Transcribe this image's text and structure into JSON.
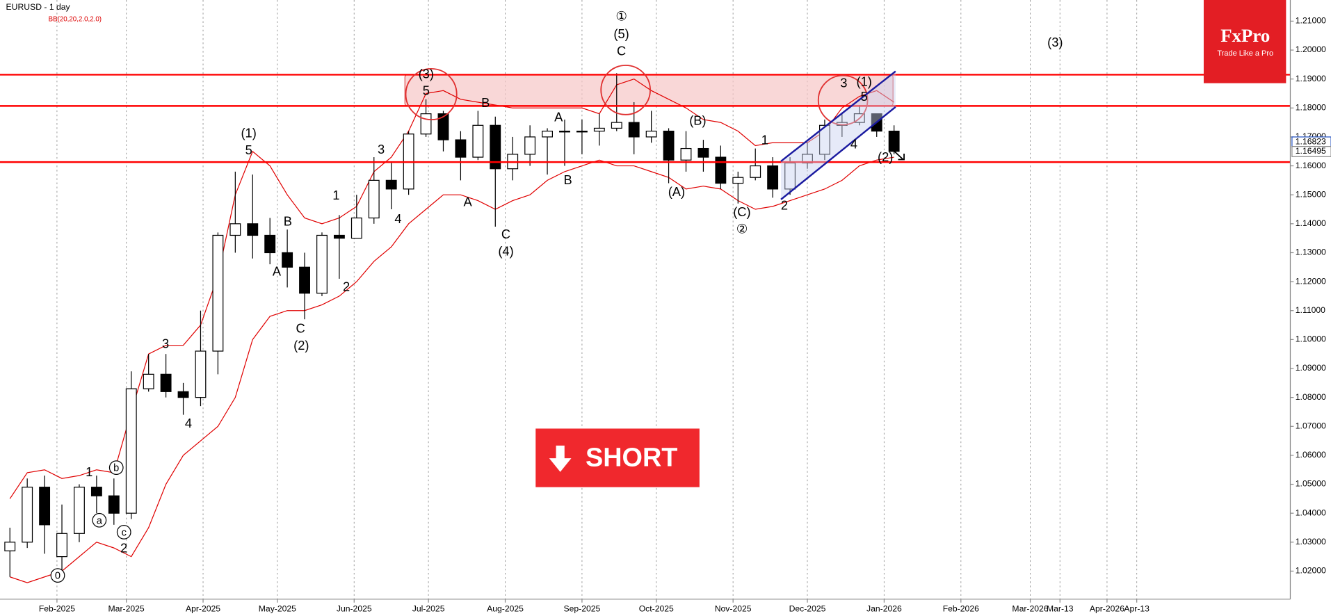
{
  "chart_data": {
    "type": "candlestick",
    "title": "EURUSD - 1 day",
    "subtitle": "BB(20,20,2.0,2.0)",
    "xlim": [
      "2025-01-09",
      "2026-06-14"
    ],
    "ylim": [
      1.0103,
      1.2173
    ],
    "yticks": [
      {
        "value": 1.02,
        "label": "1.02000"
      },
      {
        "value": 1.03,
        "label": "1.03000"
      },
      {
        "value": 1.04,
        "label": "1.04000"
      },
      {
        "value": 1.05,
        "label": "1.05000"
      },
      {
        "value": 1.06,
        "label": "1.06000"
      },
      {
        "value": 1.07,
        "label": "1.07000"
      },
      {
        "value": 1.08,
        "label": "1.08000"
      },
      {
        "value": 1.09,
        "label": "1.09000"
      },
      {
        "value": 1.1,
        "label": "1.10000"
      },
      {
        "value": 1.11,
        "label": "1.11000"
      },
      {
        "value": 1.12,
        "label": "1.12000"
      },
      {
        "value": 1.13,
        "label": "1.13000"
      },
      {
        "value": 1.14,
        "label": "1.14000"
      },
      {
        "value": 1.15,
        "label": "1.15000"
      },
      {
        "value": 1.16,
        "label": "1.16000"
      },
      {
        "value": 1.17,
        "label": "1.17000"
      },
      {
        "value": 1.18,
        "label": "1.18000"
      },
      {
        "value": 1.19,
        "label": "1.19000"
      },
      {
        "value": 1.2,
        "label": "1.20000"
      },
      {
        "value": 1.21,
        "label": "1.21000"
      }
    ],
    "xticks": [
      {
        "value": "2025-02-01",
        "label": "Feb-2025"
      },
      {
        "value": "2025-03-01",
        "label": "Mar-2025"
      },
      {
        "value": "2025-04-01",
        "label": "Apr-2025"
      },
      {
        "value": "2025-05-01",
        "label": "May-2025"
      },
      {
        "value": "2025-06-01",
        "label": "Jun-2025"
      },
      {
        "value": "2025-07-01",
        "label": "Jul-2025"
      },
      {
        "value": "2025-08-01",
        "label": "Aug-2025"
      },
      {
        "value": "2025-09-01",
        "label": "Sep-2025"
      },
      {
        "value": "2025-10-01",
        "label": "Oct-2025"
      },
      {
        "value": "2025-11-01",
        "label": "Nov-2025"
      },
      {
        "value": "2025-12-01",
        "label": "Dec-2025"
      },
      {
        "value": "2026-01-01",
        "label": "Jan-2026"
      },
      {
        "value": "2026-02-01",
        "label": "Feb-2026"
      },
      {
        "value": "2026-03-01",
        "label": "Mar-2026"
      },
      {
        "value": "2026-03-13",
        "label": "Mar-13"
      },
      {
        "value": "2026-04-01",
        "label": "Apr-2026"
      },
      {
        "value": "2026-04-13",
        "label": "Apr-13"
      }
    ],
    "x": [
      "2025-01-13",
      "2025-01-20",
      "2025-01-27",
      "2025-02-03",
      "2025-02-10",
      "2025-02-17",
      "2025-02-24",
      "2025-03-03",
      "2025-03-10",
      "2025-03-17",
      "2025-03-24",
      "2025-03-31",
      "2025-04-07",
      "2025-04-14",
      "2025-04-21",
      "2025-04-28",
      "2025-05-05",
      "2025-05-12",
      "2025-05-19",
      "2025-05-26",
      "2025-06-02",
      "2025-06-09",
      "2025-06-16",
      "2025-06-23",
      "2025-06-30",
      "2025-07-07",
      "2025-07-14",
      "2025-07-21",
      "2025-07-28",
      "2025-08-04",
      "2025-08-11",
      "2025-08-18",
      "2025-08-25",
      "2025-09-01",
      "2025-09-08",
      "2025-09-15",
      "2025-09-22",
      "2025-09-29",
      "2025-10-06",
      "2025-10-13",
      "2025-10-20",
      "2025-10-27",
      "2025-11-03",
      "2025-11-10",
      "2025-11-17",
      "2025-11-24",
      "2025-12-01",
      "2025-12-08",
      "2025-12-15",
      "2025-12-22",
      "2025-12-29",
      "2026-01-05"
    ],
    "open": [
      1.027,
      1.03,
      1.049,
      1.025,
      1.033,
      1.049,
      1.046,
      1.04,
      1.083,
      1.088,
      1.082,
      1.08,
      1.096,
      1.136,
      1.14,
      1.136,
      1.13,
      1.125,
      1.116,
      1.136,
      1.135,
      1.142,
      1.155,
      1.152,
      1.171,
      1.178,
      1.169,
      1.163,
      1.174,
      1.159,
      1.164,
      1.17,
      1.172,
      1.172,
      1.172,
      1.173,
      1.175,
      1.17,
      1.172,
      1.162,
      1.166,
      1.163,
      1.154,
      1.156,
      1.16,
      1.152,
      1.161,
      1.164,
      1.174,
      1.175,
      1.178,
      1.172
    ],
    "high": [
      1.035,
      1.052,
      1.053,
      1.043,
      1.05,
      1.053,
      1.052,
      1.089,
      1.095,
      1.095,
      1.085,
      1.11,
      1.137,
      1.158,
      1.157,
      1.142,
      1.138,
      1.13,
      1.137,
      1.143,
      1.15,
      1.163,
      1.161,
      1.172,
      1.183,
      1.179,
      1.172,
      1.179,
      1.177,
      1.17,
      1.174,
      1.173,
      1.176,
      1.176,
      1.178,
      1.192,
      1.182,
      1.179,
      1.173,
      1.172,
      1.169,
      1.167,
      1.158,
      1.166,
      1.163,
      1.163,
      1.168,
      1.176,
      1.178,
      1.181,
      1.178,
      1.174
    ],
    "low": [
      1.018,
      1.028,
      1.026,
      1.018,
      1.03,
      1.04,
      1.036,
      1.038,
      1.082,
      1.08,
      1.074,
      1.077,
      1.088,
      1.13,
      1.128,
      1.126,
      1.118,
      1.107,
      1.115,
      1.121,
      1.136,
      1.14,
      1.145,
      1.15,
      1.17,
      1.165,
      1.155,
      1.162,
      1.139,
      1.155,
      1.16,
      1.157,
      1.16,
      1.164,
      1.167,
      1.172,
      1.164,
      1.168,
      1.154,
      1.158,
      1.158,
      1.152,
      1.147,
      1.155,
      1.149,
      1.15,
      1.159,
      1.162,
      1.17,
      1.174,
      1.17,
      1.164
    ],
    "close": [
      1.03,
      1.049,
      1.036,
      1.033,
      1.049,
      1.046,
      1.04,
      1.083,
      1.088,
      1.082,
      1.08,
      1.096,
      1.136,
      1.14,
      1.136,
      1.13,
      1.125,
      1.116,
      1.136,
      1.135,
      1.142,
      1.155,
      1.152,
      1.171,
      1.178,
      1.169,
      1.163,
      1.174,
      1.159,
      1.164,
      1.17,
      1.172,
      1.172,
      1.172,
      1.173,
      1.175,
      1.17,
      1.172,
      1.162,
      1.166,
      1.163,
      1.154,
      1.156,
      1.16,
      1.152,
      1.161,
      1.164,
      1.174,
      1.175,
      1.178,
      1.172,
      1.165
    ],
    "candle_color": "#000000",
    "bands": {
      "color": "#e00000",
      "upper": [
        1.045,
        1.054,
        1.055,
        1.052,
        1.053,
        1.055,
        1.054,
        1.075,
        1.095,
        1.098,
        1.098,
        1.105,
        1.122,
        1.15,
        1.165,
        1.16,
        1.15,
        1.142,
        1.14,
        1.142,
        1.146,
        1.158,
        1.163,
        1.172,
        1.185,
        1.186,
        1.183,
        1.182,
        1.181,
        1.18,
        1.18,
        1.18,
        1.18,
        1.18,
        1.178,
        1.188,
        1.19,
        1.186,
        1.183,
        1.18,
        1.176,
        1.175,
        1.172,
        1.167,
        1.168,
        1.168,
        1.168,
        1.172,
        1.18,
        1.184,
        1.186,
        1.182
      ],
      "lower": [
        1.018,
        1.016,
        1.018,
        1.02,
        1.025,
        1.03,
        1.028,
        1.025,
        1.035,
        1.05,
        1.06,
        1.065,
        1.07,
        1.08,
        1.1,
        1.108,
        1.11,
        1.11,
        1.112,
        1.115,
        1.12,
        1.127,
        1.132,
        1.14,
        1.145,
        1.15,
        1.15,
        1.148,
        1.145,
        1.148,
        1.15,
        1.155,
        1.158,
        1.16,
        1.162,
        1.16,
        1.16,
        1.158,
        1.156,
        1.152,
        1.153,
        1.152,
        1.148,
        1.145,
        1.146,
        1.148,
        1.15,
        1.152,
        1.155,
        1.16,
        1.162,
        1.163
      ]
    },
    "levels": [
      1.1915,
      1.1807,
      1.1613
    ],
    "level_color": "#ff0000",
    "price_tags": [
      1.16823,
      1.16495
    ],
    "grid": true,
    "annotations": [
      "0",
      "1",
      "b",
      "a",
      "c",
      "2",
      "3",
      "4",
      "(1)",
      "5",
      "A",
      "B",
      "C",
      "(2)",
      "1",
      "2",
      "3",
      "4",
      "(3)",
      "5",
      "A",
      "B",
      "C",
      "(4)",
      "A",
      "B",
      "①",
      "(5)",
      "C",
      "(A)",
      "(B)",
      "1",
      "(C)",
      "②",
      "2",
      "3",
      "(1)",
      "5",
      "4",
      "(2)",
      "(3)"
    ]
  },
  "logo": {
    "name": "FxPro",
    "tagline": "Trade Like a Pro"
  },
  "signal": "SHORT"
}
